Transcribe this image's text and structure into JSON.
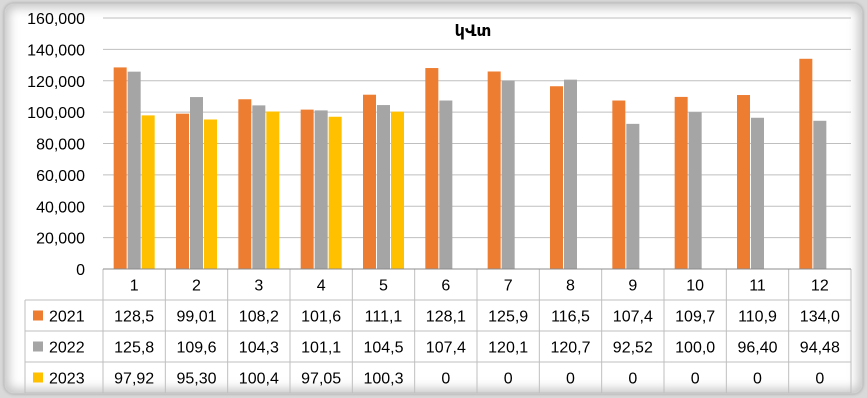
{
  "chart_data": {
    "type": "bar",
    "title": "կՎտ",
    "categories": [
      "1",
      "2",
      "3",
      "4",
      "5",
      "6",
      "7",
      "8",
      "9",
      "10",
      "11",
      "12"
    ],
    "ylim": [
      0,
      160000
    ],
    "yticks": [
      "0",
      "20,000",
      "40,000",
      "60,000",
      "80,000",
      "100,000",
      "120,000",
      "140,000",
      "160,000"
    ],
    "grid": true,
    "legend": "data-table",
    "series": [
      {
        "name": "2021",
        "color": "#ED7D31",
        "values": [
          128500,
          99010,
          108200,
          101600,
          111100,
          128100,
          125900,
          116500,
          107400,
          109700,
          110900,
          134000
        ],
        "labels": [
          "128,5",
          "99,01",
          "108,2",
          "101,6",
          "111,1",
          "128,1",
          "125,9",
          "116,5",
          "107,4",
          "109,7",
          "110,9",
          "134,0"
        ]
      },
      {
        "name": "2022",
        "color": "#A5A5A5",
        "values": [
          125800,
          109600,
          104300,
          101100,
          104500,
          107400,
          120100,
          120700,
          92520,
          100000,
          96400,
          94480
        ],
        "labels": [
          "125,8",
          "109,6",
          "104,3",
          "101,1",
          "104,5",
          "107,4",
          "120,1",
          "120,7",
          "92,52",
          "100,0",
          "96,40",
          "94,48"
        ]
      },
      {
        "name": "2023",
        "color": "#FFC000",
        "values": [
          97920,
          95300,
          100400,
          97050,
          100300,
          0,
          0,
          0,
          0,
          0,
          0,
          0
        ],
        "labels": [
          "97,92",
          "95,30",
          "100,4",
          "97,05",
          "100,3",
          "0",
          "0",
          "0",
          "0",
          "0",
          "0",
          "0"
        ]
      }
    ]
  }
}
